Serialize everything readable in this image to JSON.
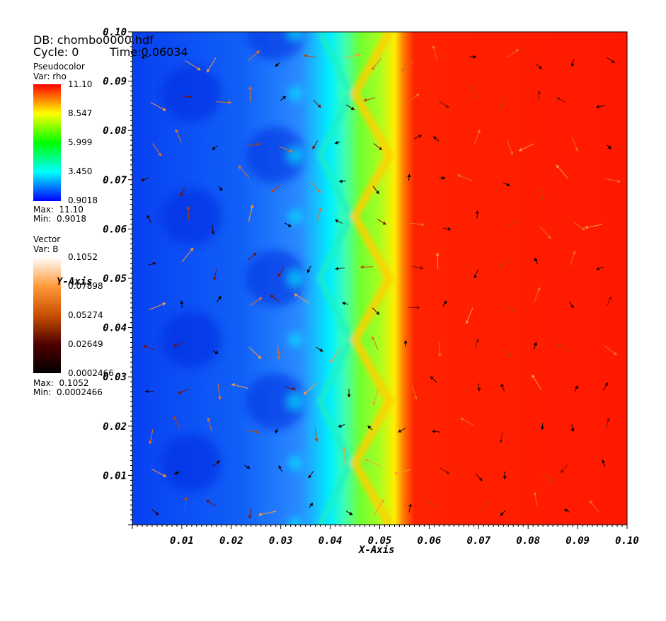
{
  "header": {
    "db_label": "DB: chombo0000.hdf",
    "cycle_label": "Cycle: 0",
    "time_label": "Time:0.06034"
  },
  "legend_pseudocolor": {
    "title": "Pseudocolor",
    "var": "Var: rho",
    "ticks": [
      "11.10",
      "8.547",
      "5.999",
      "3.450",
      "0.9018"
    ],
    "max": "Max:  11.10",
    "min": "Min:  0.9018",
    "colors": [
      "#ff0000",
      "#ffff00",
      "#00ff00",
      "#00ffff",
      "#0000ff"
    ]
  },
  "legend_vector": {
    "title": "Vector",
    "var": "Var: B",
    "ticks": [
      "0.1052",
      "0.07898",
      "0.05274",
      "0.02649",
      "0.0002466"
    ],
    "max": "Max:  0.1052",
    "min": "Min:  0.0002466",
    "colors": [
      "#ffffff",
      "#ff9a3a",
      "#c85000",
      "#500000",
      "#000000"
    ]
  },
  "chart_data": {
    "type": "heatmap",
    "xlabel": "X-Axis",
    "ylabel": "Y-Axis",
    "xlim": [
      0.0,
      0.1
    ],
    "ylim": [
      0.0,
      0.1
    ],
    "x_ticks": [
      "0.01",
      "0.02",
      "0.03",
      "0.04",
      "0.05",
      "0.06",
      "0.07",
      "0.08",
      "0.09",
      "0.10"
    ],
    "y_ticks": [
      "0.10",
      "0.09",
      "0.08",
      "0.07",
      "0.06",
      "0.05",
      "0.04",
      "0.03",
      "0.02",
      "0.01"
    ],
    "x_tick_values": [
      0.01,
      0.02,
      0.03,
      0.04,
      0.05,
      0.06,
      0.07,
      0.08,
      0.09,
      0.1
    ],
    "y_tick_values": [
      0.1,
      0.09,
      0.08,
      0.07,
      0.06,
      0.05,
      0.04,
      0.03,
      0.02,
      0.01
    ],
    "field": "rho",
    "field_range": [
      0.9018,
      11.1
    ],
    "front_x": [
      0.044,
      0.052
    ],
    "pattern_period_y": 0.025,
    "vector_field": "B",
    "vector_range": [
      0.0002466,
      0.1052
    ]
  }
}
